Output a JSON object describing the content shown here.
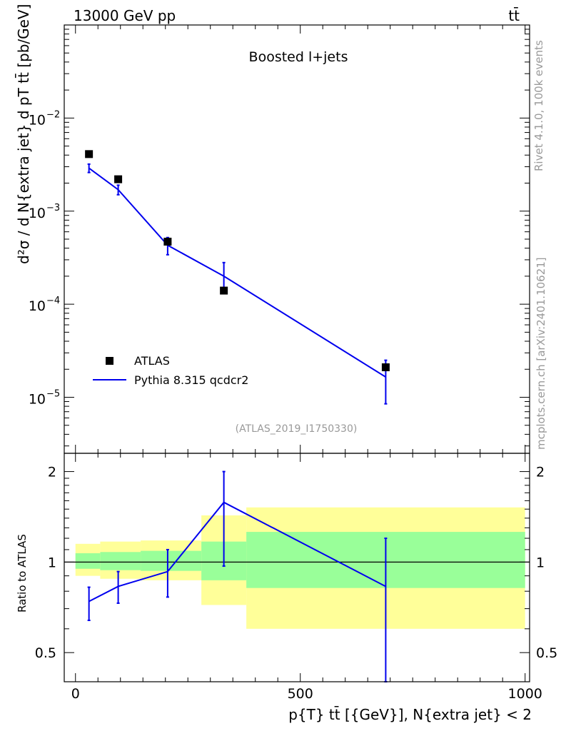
{
  "header": {
    "energy_label": "13000 GeV pp",
    "process_label": "tt̄"
  },
  "side_labels": {
    "rivet": "Rivet 4.1.0,  100k events",
    "mcplots": "mcplots.cern.ch [arXiv:2401.10621]"
  },
  "chart_data": [
    {
      "type": "scatter",
      "panel": "main",
      "title": "Boosted l+jets",
      "analysis_label": "(ATLAS_2019_I1750330)",
      "ylabel": "d²σ / d N{extra jet} d pT tt̄ [pb/GeV]",
      "yscale": "log",
      "ylim": [
        2.5e-06,
        0.1
      ],
      "xlim": [
        -25,
        1010
      ],
      "yticks": [
        {
          "value": 1e-05,
          "base": "10",
          "exp": "−5"
        },
        {
          "value": 0.0001,
          "base": "10",
          "exp": "−4"
        },
        {
          "value": 0.001,
          "base": "10",
          "exp": "−3"
        },
        {
          "value": 0.01,
          "base": "10",
          "exp": "−2"
        }
      ],
      "legend": {
        "position": "bottom-left",
        "entries": [
          {
            "label": "ATLAS",
            "marker": "square",
            "color": "#000000"
          },
          {
            "label": "Pythia 8.315 qcdcr2",
            "marker": "line",
            "color": "#0000ee"
          }
        ]
      },
      "series": [
        {
          "name": "ATLAS",
          "x": [
            30,
            95,
            205,
            330,
            690
          ],
          "y": [
            0.0041,
            0.0022,
            0.00047,
            0.00014,
            2.1e-05
          ]
        },
        {
          "name": "Pythia 8.315 qcdcr2",
          "x": [
            30,
            95,
            205,
            330,
            690
          ],
          "y": [
            0.0029,
            0.0017,
            0.00043,
            0.0002,
            1.65e-05
          ],
          "err_lo": [
            0.0026,
            0.0015,
            0.00034,
            0.00014,
            8.5e-06
          ],
          "err_hi": [
            0.0032,
            0.0019,
            0.00052,
            0.00028,
            2.5e-05
          ]
        }
      ]
    },
    {
      "type": "line",
      "panel": "ratio",
      "ylabel": "Ratio to ATLAS",
      "xlabel": "p{T} tt̄ [{GeV}], N{extra jet} < 2",
      "ylim": [
        0.4,
        2.3
      ],
      "xlim": [
        -25,
        1010
      ],
      "yticks": [
        0.5,
        1,
        2
      ],
      "ytick_labels": [
        "0.5",
        "1",
        "2"
      ],
      "xticks": [
        0,
        500,
        1000
      ],
      "xtick_labels": [
        "0",
        "500",
        "1000"
      ],
      "reference_line": 1,
      "bands": [
        {
          "x0": 0,
          "x1": 55,
          "inner": [
            0.95,
            1.07
          ],
          "outer": [
            0.9,
            1.15
          ]
        },
        {
          "x0": 55,
          "x1": 145,
          "inner": [
            0.94,
            1.08
          ],
          "outer": [
            0.88,
            1.17
          ]
        },
        {
          "x0": 145,
          "x1": 280,
          "inner": [
            0.935,
            1.09
          ],
          "outer": [
            0.87,
            1.18
          ]
        },
        {
          "x0": 280,
          "x1": 380,
          "inner": [
            0.87,
            1.17
          ],
          "outer": [
            0.72,
            1.43
          ]
        },
        {
          "x0": 380,
          "x1": 1000,
          "inner": [
            0.82,
            1.26
          ],
          "outer": [
            0.6,
            1.52
          ]
        }
      ],
      "series": [
        {
          "name": "Pythia 8.315 qcdcr2",
          "x": [
            30,
            95,
            205,
            330,
            690
          ],
          "y": [
            0.74,
            0.83,
            0.93,
            1.58,
            0.83
          ],
          "err_lo": [
            0.64,
            0.73,
            0.765,
            0.97,
            0.4
          ],
          "err_hi": [
            0.825,
            0.93,
            1.1,
            2.0,
            1.2
          ]
        }
      ]
    }
  ]
}
